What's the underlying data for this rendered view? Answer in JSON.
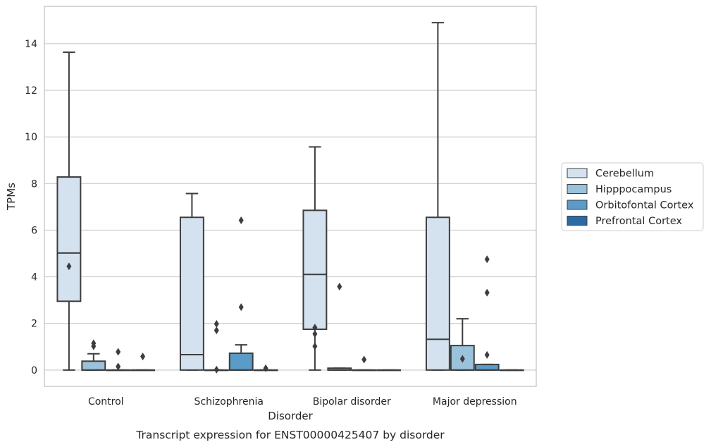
{
  "caption": "Transcript expression for ENST00000425407 by disorder",
  "chart_data": {
    "type": "box",
    "xlabel": "Disorder",
    "ylabel": "TPMs",
    "ylim": [
      -0.7,
      15.6
    ],
    "yticks": [
      0,
      2,
      4,
      6,
      8,
      10,
      12,
      14
    ],
    "grid": "horizontal",
    "legend_position": "right",
    "categories": [
      "Control",
      "Schizophrenia",
      "Bipolar disorder",
      "Major depression"
    ],
    "series": [
      {
        "name": "Cerebellum",
        "color": "#d4e2f0",
        "boxes": [
          {
            "whislo": 0,
            "q1": 2.95,
            "med": 5.02,
            "q3": 8.28,
            "whishi": 13.63,
            "fliers": [
              4.45
            ]
          },
          {
            "whislo": 0,
            "q1": 0,
            "med": 0.66,
            "q3": 6.55,
            "whishi": 7.57,
            "fliers": []
          },
          {
            "whislo": 0,
            "q1": 1.75,
            "med": 4.1,
            "q3": 6.85,
            "whishi": 9.57,
            "fliers": [
              1.02,
              1.55,
              1.82
            ]
          },
          {
            "whislo": 0,
            "q1": 0,
            "med": 1.32,
            "q3": 6.55,
            "whishi": 14.9,
            "fliers": []
          }
        ]
      },
      {
        "name": "Hipppocampus",
        "color": "#9ac2da",
        "boxes": [
          {
            "whislo": 0,
            "q1": 0,
            "med": 0,
            "q3": 0.38,
            "whishi": 0.7,
            "fliers": [
              1.02,
              1.15
            ]
          },
          {
            "whislo": 0,
            "q1": 0,
            "med": 0,
            "q3": 0,
            "whishi": 0,
            "fliers": [
              0.02,
              1.7,
              1.98
            ]
          },
          {
            "whislo": 0,
            "q1": 0,
            "med": 0,
            "q3": 0.08,
            "whishi": 0.08,
            "fliers": [
              3.58
            ]
          },
          {
            "whislo": 0,
            "q1": 0,
            "med": 0,
            "q3": 1.05,
            "whishi": 2.2,
            "fliers": [
              0.48
            ]
          }
        ]
      },
      {
        "name": "Orbitofontal Cortex",
        "color": "#5a9bc7",
        "boxes": [
          {
            "whislo": 0,
            "q1": 0,
            "med": 0,
            "q3": 0,
            "whishi": 0,
            "fliers": [
              0.15,
              0.78
            ]
          },
          {
            "whislo": 0,
            "q1": 0,
            "med": 0,
            "q3": 0.72,
            "whishi": 1.08,
            "fliers": [
              2.7,
              6.42
            ]
          },
          {
            "whislo": 0,
            "q1": 0,
            "med": 0,
            "q3": 0,
            "whishi": 0,
            "fliers": [
              0.45
            ]
          },
          {
            "whislo": 0,
            "q1": 0,
            "med": 0,
            "q3": 0.24,
            "whishi": 0.24,
            "fliers": [
              0.65,
              3.32,
              4.75
            ]
          }
        ]
      },
      {
        "name": "Prefrontal Cortex",
        "color": "#2b6aa3",
        "boxes": [
          {
            "whislo": 0,
            "q1": 0,
            "med": 0,
            "q3": 0,
            "whishi": 0,
            "fliers": [
              0.58
            ]
          },
          {
            "whislo": 0,
            "q1": 0,
            "med": 0,
            "q3": 0,
            "whishi": 0,
            "fliers": [
              0.08
            ]
          },
          {
            "whislo": 0,
            "q1": 0,
            "med": 0,
            "q3": 0,
            "whishi": 0,
            "fliers": []
          },
          {
            "whislo": 0,
            "q1": 0,
            "med": 0,
            "q3": 0,
            "whishi": 0,
            "fliers": []
          }
        ]
      }
    ]
  }
}
